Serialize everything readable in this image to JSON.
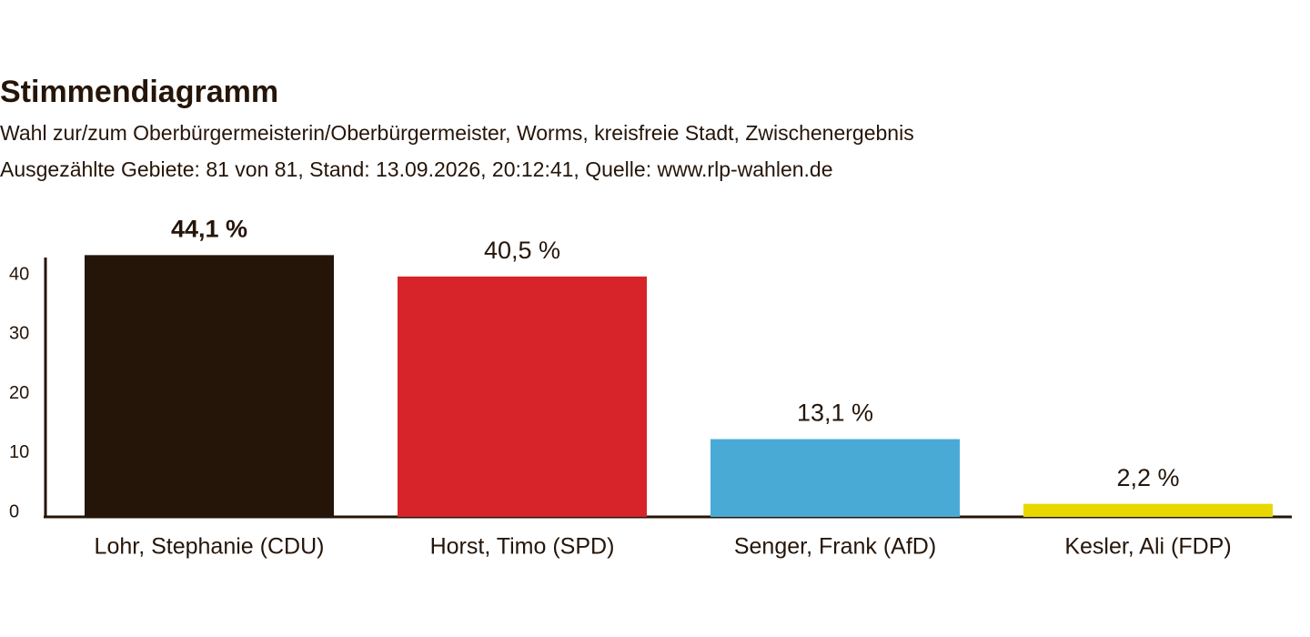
{
  "chart_data": {
    "type": "bar",
    "title": "Stimmendiagramm",
    "subtitle": [
      "Wahl zur/zum Oberbürgermeisterin/Oberbürgermeister, Worms, kreisfreie Stadt, Zwischenergebnis",
      "Ausgezählte Gebiete: 81 von 81, Stand: 13.09.2026, 20:12:41, Quelle: www.rlp-wahlen.de"
    ],
    "categories": [
      "Lohr, Stephanie (CDU)",
      "Horst, Timo (SPD)",
      "Senger, Frank (AfD)",
      "Kesler, Ali (FDP)"
    ],
    "values": [
      44.1,
      40.5,
      13.1,
      2.2
    ],
    "value_labels": [
      "44,1 %",
      "40,5 %",
      "13,1 %",
      "2,2 %"
    ],
    "colors": [
      "#251509",
      "#d6242a",
      "#4aaad6",
      "#e8d800"
    ],
    "ylim": [
      0,
      44
    ],
    "yticks": [
      0,
      10,
      20,
      30,
      40
    ],
    "grid": false
  }
}
